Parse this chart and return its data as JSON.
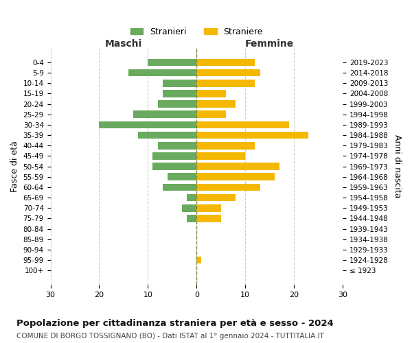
{
  "age_groups": [
    "100+",
    "95-99",
    "90-94",
    "85-89",
    "80-84",
    "75-79",
    "70-74",
    "65-69",
    "60-64",
    "55-59",
    "50-54",
    "45-49",
    "40-44",
    "35-39",
    "30-34",
    "25-29",
    "20-24",
    "15-19",
    "10-14",
    "5-9",
    "0-4"
  ],
  "birth_years": [
    "≤ 1923",
    "1924-1928",
    "1929-1933",
    "1934-1938",
    "1939-1943",
    "1944-1948",
    "1949-1953",
    "1954-1958",
    "1959-1963",
    "1964-1968",
    "1969-1973",
    "1974-1978",
    "1979-1983",
    "1984-1988",
    "1989-1993",
    "1994-1998",
    "1999-2003",
    "2004-2008",
    "2009-2013",
    "2014-2018",
    "2019-2023"
  ],
  "males": [
    0,
    0,
    0,
    0,
    0,
    2,
    3,
    2,
    7,
    6,
    9,
    9,
    8,
    12,
    20,
    13,
    8,
    7,
    7,
    14,
    10
  ],
  "females": [
    0,
    1,
    0,
    0,
    0,
    5,
    5,
    8,
    13,
    16,
    17,
    10,
    12,
    23,
    19,
    6,
    8,
    6,
    12,
    13,
    12
  ],
  "male_color": "#6aaa5e",
  "female_color": "#f5b800",
  "grid_color": "#cccccc",
  "title": "Popolazione per cittadinanza straniera per età e sesso - 2024",
  "subtitle": "COMUNE DI BORGO TOSSIGNANO (BO) - Dati ISTAT al 1° gennaio 2024 - TUTTITALIA.IT",
  "legend_male": "Stranieri",
  "legend_female": "Straniere",
  "xlabel_left": "Maschi",
  "xlabel_right": "Femmine",
  "ylabel_left": "Fasce di età",
  "ylabel_right": "Anni di nascita",
  "xlim": 30,
  "bg_color": "#ffffff"
}
